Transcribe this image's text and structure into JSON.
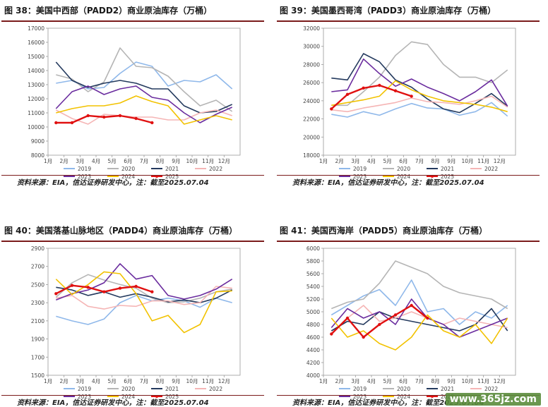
{
  "months": [
    "1月",
    "2月",
    "3月",
    "4月",
    "5月",
    "6月",
    "7月",
    "8月",
    "9月",
    "10月",
    "11月",
    "12月"
  ],
  "source_text": "资料来源：EIA，信达证券研发中心，注：截至2025.07.04",
  "watermark": "www.365jz.com",
  "series_colors": {
    "2019": "#8fb8ea",
    "2020": "#b5b5b5",
    "2021": "#243a5e",
    "2022": "#f5b5b5",
    "2023": "#6a2c9e",
    "2024": "#f2c200",
    "2025": "#e01010"
  },
  "chart_data": [
    {
      "type": "line",
      "title": "图 38：美国中西部（PADD2）商业原油库存（万桶）",
      "ylim": [
        8000,
        17000
      ],
      "yticks": [
        8000,
        9000,
        10000,
        11000,
        12000,
        13000,
        14000,
        15000,
        16000,
        17000
      ],
      "x": [
        "1月",
        "2月",
        "3月",
        "4月",
        "5月",
        "6月",
        "7月",
        "8月",
        "9月",
        "10月",
        "11月",
        "12月"
      ],
      "series": [
        {
          "name": "2019",
          "values": [
            13100,
            13300,
            12700,
            12800,
            13800,
            14600,
            14300,
            12900,
            13300,
            13200,
            13700,
            12700
          ]
        },
        {
          "name": "2020",
          "values": [
            13700,
            13400,
            12500,
            13200,
            15600,
            14300,
            14200,
            13600,
            12500,
            11500,
            11900,
            11100
          ]
        },
        {
          "name": "2021",
          "values": [
            14600,
            13300,
            12800,
            13100,
            13300,
            13100,
            12700,
            12700,
            11500,
            11000,
            11100,
            11600
          ]
        },
        {
          "name": "2022",
          "values": [
            11200,
            10600,
            10200,
            10900,
            10800,
            10700,
            10700,
            10500,
            10500,
            11000,
            11200,
            10800
          ]
        },
        {
          "name": "2023",
          "values": [
            11300,
            12500,
            12900,
            12300,
            12700,
            12900,
            12100,
            11900,
            11000,
            10300,
            10900,
            11400
          ]
        },
        {
          "name": "2024",
          "values": [
            11000,
            11300,
            11500,
            11500,
            11700,
            12200,
            11800,
            11500,
            10200,
            10500,
            10800,
            10500
          ]
        },
        {
          "name": "2025",
          "values": [
            10300,
            10300,
            10800,
            10700,
            10800,
            10600,
            10300,
            null,
            null,
            null,
            null,
            null
          ]
        }
      ]
    },
    {
      "type": "line",
      "title": "图 39：美国墨西哥湾（PADD3）商业原油库存（万桶）",
      "ylim": [
        18000,
        32000
      ],
      "yticks": [
        18000,
        20000,
        22000,
        24000,
        26000,
        28000,
        30000,
        32000
      ],
      "x": [
        "1月",
        "2月",
        "3月",
        "4月",
        "5月",
        "6月",
        "7月",
        "8月",
        "9月",
        "10月",
        "11月",
        "12月"
      ],
      "series": [
        {
          "name": "2019",
          "values": [
            22500,
            22200,
            22800,
            22400,
            23100,
            23700,
            23200,
            23100,
            22400,
            22800,
            23800,
            22300
          ]
        },
        {
          "name": "2020",
          "values": [
            23500,
            23500,
            25000,
            26600,
            29000,
            30500,
            30200,
            28000,
            26600,
            26600,
            26000,
            27400
          ]
        },
        {
          "name": "2021",
          "values": [
            26500,
            26300,
            29200,
            28300,
            26300,
            25500,
            24200,
            23100,
            22700,
            23700,
            24800,
            23400
          ]
        },
        {
          "name": "2022",
          "values": [
            23000,
            22800,
            23200,
            23500,
            23800,
            24300,
            23900,
            23800,
            23600,
            24000,
            24500,
            23300
          ]
        },
        {
          "name": "2023",
          "values": [
            25000,
            25200,
            28600,
            27000,
            25600,
            26400,
            25500,
            24800,
            24000,
            25000,
            26300,
            23400
          ]
        },
        {
          "name": "2024",
          "values": [
            23500,
            23800,
            24100,
            24500,
            26200,
            25200,
            24500,
            24000,
            23800,
            23600,
            23300,
            22800
          ]
        },
        {
          "name": "2025",
          "values": [
            23100,
            24700,
            25400,
            25700,
            25100,
            24500,
            null,
            null,
            null,
            null,
            null,
            null
          ]
        }
      ]
    },
    {
      "type": "line",
      "title": "图 40：美国落基山脉地区（PADD4）商业原油库存（万桶）",
      "ylim": [
        1500,
        2900
      ],
      "yticks": [
        1500,
        1700,
        1900,
        2100,
        2300,
        2500,
        2700,
        2900
      ],
      "x": [
        "1月",
        "2月",
        "3月",
        "4月",
        "5月",
        "6月",
        "7月",
        "8月",
        "9月",
        "10月",
        "11月",
        "12月"
      ],
      "series": [
        {
          "name": "2019",
          "values": [
            2150,
            2100,
            2060,
            2120,
            2300,
            2380,
            2320,
            2350,
            2320,
            2250,
            2350,
            2300
          ]
        },
        {
          "name": "2020",
          "values": [
            2360,
            2520,
            2610,
            2550,
            2500,
            2460,
            2350,
            2300,
            2310,
            2350,
            2420,
            2450
          ]
        },
        {
          "name": "2021",
          "values": [
            2470,
            2440,
            2380,
            2420,
            2360,
            2400,
            2360,
            2310,
            2330,
            2300,
            2350,
            2440
          ]
        },
        {
          "name": "2022",
          "values": [
            2350,
            2380,
            2260,
            2230,
            2270,
            2260,
            2320,
            2320,
            2280,
            2300,
            2480,
            2460
          ]
        },
        {
          "name": "2023",
          "values": [
            2330,
            2400,
            2440,
            2520,
            2730,
            2560,
            2600,
            2380,
            2340,
            2380,
            2450,
            2560
          ]
        },
        {
          "name": "2024",
          "values": [
            2560,
            2390,
            2500,
            2640,
            2620,
            2400,
            2100,
            2160,
            1970,
            2060,
            2420,
            2430
          ]
        },
        {
          "name": "2025",
          "values": [
            2400,
            2490,
            2470,
            2420,
            2460,
            2480,
            2420,
            null,
            null,
            null,
            null,
            null
          ]
        }
      ]
    },
    {
      "type": "line",
      "title": "图 41：美国西海岸（PADD5）商业原油库存（万桶）",
      "ylim": [
        4000,
        6000
      ],
      "yticks": [
        4000,
        4200,
        4400,
        4600,
        4800,
        5000,
        5200,
        5400,
        5600,
        5800,
        6000
      ],
      "x": [
        "1月",
        "2月",
        "3月",
        "4月",
        "5月",
        "6月",
        "7月",
        "8月",
        "9月",
        "10月",
        "11月",
        "12月"
      ],
      "series": [
        {
          "name": "2019",
          "values": [
            4950,
            5100,
            5250,
            5350,
            5100,
            5500,
            5000,
            5050,
            4800,
            5000,
            4900,
            5100
          ]
        },
        {
          "name": "2020",
          "values": [
            5050,
            5150,
            5200,
            5450,
            5800,
            5700,
            5600,
            5400,
            5300,
            5250,
            5200,
            5050
          ]
        },
        {
          "name": "2021",
          "values": [
            4700,
            4850,
            4800,
            5000,
            4900,
            4850,
            4800,
            4750,
            4700,
            4800,
            5050,
            4700
          ]
        },
        {
          "name": "2022",
          "values": [
            4650,
            4900,
            5100,
            4850,
            4900,
            5000,
            4900,
            4800,
            4900,
            4850,
            4800,
            4750
          ]
        },
        {
          "name": "2023",
          "values": [
            4750,
            5050,
            4900,
            5000,
            4800,
            5200,
            4900,
            4800,
            4600,
            4700,
            4800,
            4900
          ]
        },
        {
          "name": "2024",
          "values": [
            4900,
            4600,
            4700,
            4500,
            4400,
            4600,
            4950,
            4700,
            4600,
            4800,
            4500,
            4900
          ]
        },
        {
          "name": "2025",
          "values": [
            4650,
            4900,
            4600,
            4800,
            4950,
            5100,
            4900,
            null,
            null,
            null,
            null,
            null
          ]
        }
      ]
    }
  ]
}
